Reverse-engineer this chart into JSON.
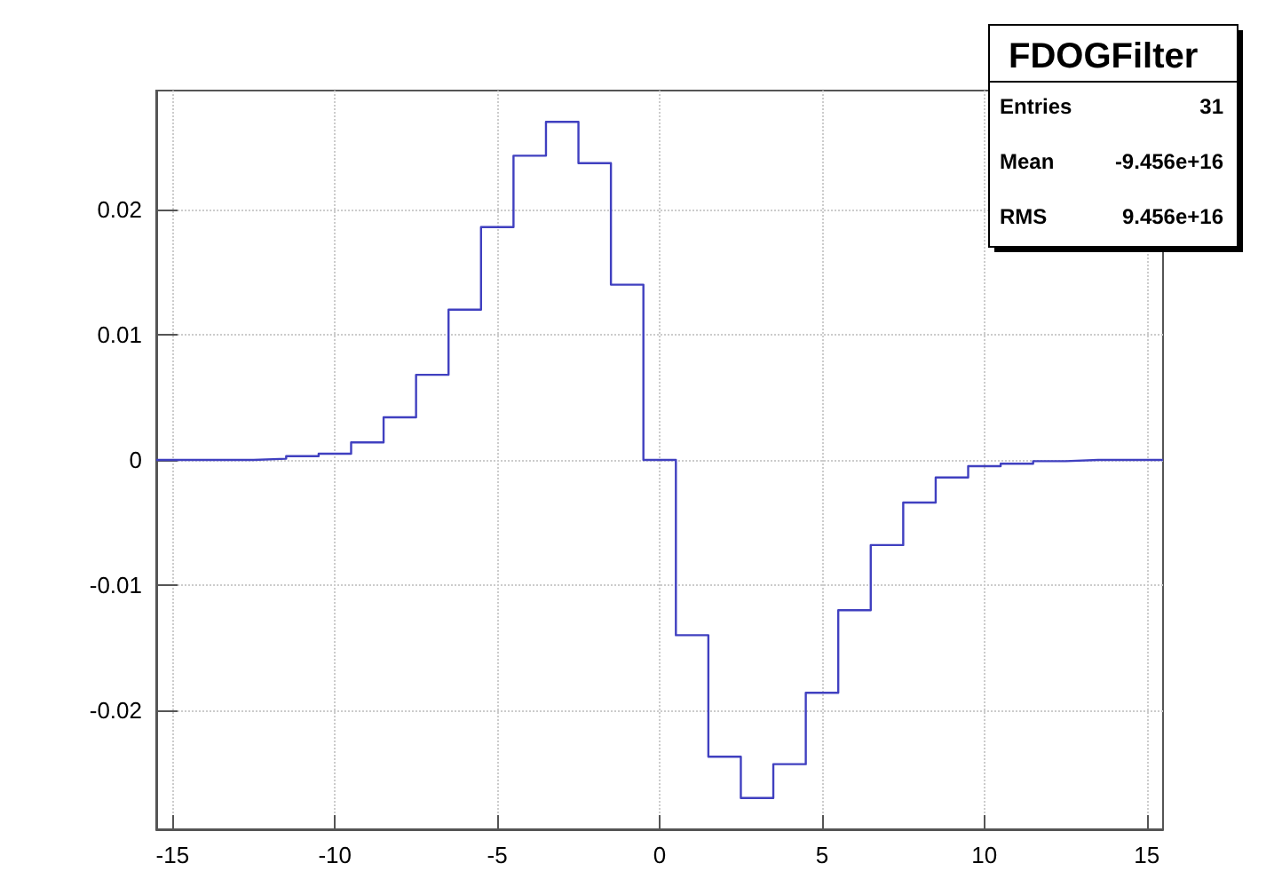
{
  "chart_data": {
    "type": "histogram",
    "title": "FDOGFilter",
    "annotations": [
      "Entries",
      "31",
      "Mean",
      "-9.456e+16",
      "RMS",
      "9.456e+16"
    ],
    "bins": [
      -15.5,
      -14.5,
      -13.5,
      -12.5,
      -11.5,
      -10.5,
      -9.5,
      -8.5,
      -7.5,
      -6.5,
      -5.5,
      -4.5,
      -3.5,
      -2.5,
      -1.5,
      -0.5,
      0.5,
      1.5,
      2.5,
      3.5,
      4.5,
      5.5,
      6.5,
      7.5,
      8.5,
      9.5,
      10.5,
      11.5,
      12.5,
      13.5,
      14.5,
      15.5
    ],
    "values": [
      0,
      0,
      0,
      0.0001,
      0.0003,
      0.0005,
      0.0014,
      0.0034,
      0.0068,
      0.012,
      0.0186,
      0.0243,
      0.027,
      0.0237,
      0.014,
      0,
      -0.014,
      -0.0237,
      -0.027,
      -0.0243,
      -0.0186,
      -0.012,
      -0.0068,
      -0.0034,
      -0.0014,
      -0.0005,
      -0.0003,
      -0.0001,
      0,
      0,
      0
    ],
    "color": "#4040c0",
    "xlim": [
      -15.5,
      15.5
    ],
    "xticks": [
      -15,
      -10,
      -5,
      0,
      5,
      10,
      15
    ],
    "ylim": [
      -0.0295,
      0.0295
    ],
    "yticks": [
      -0.02,
      -0.01,
      0,
      0.01,
      0.02
    ],
    "grid": true
  }
}
